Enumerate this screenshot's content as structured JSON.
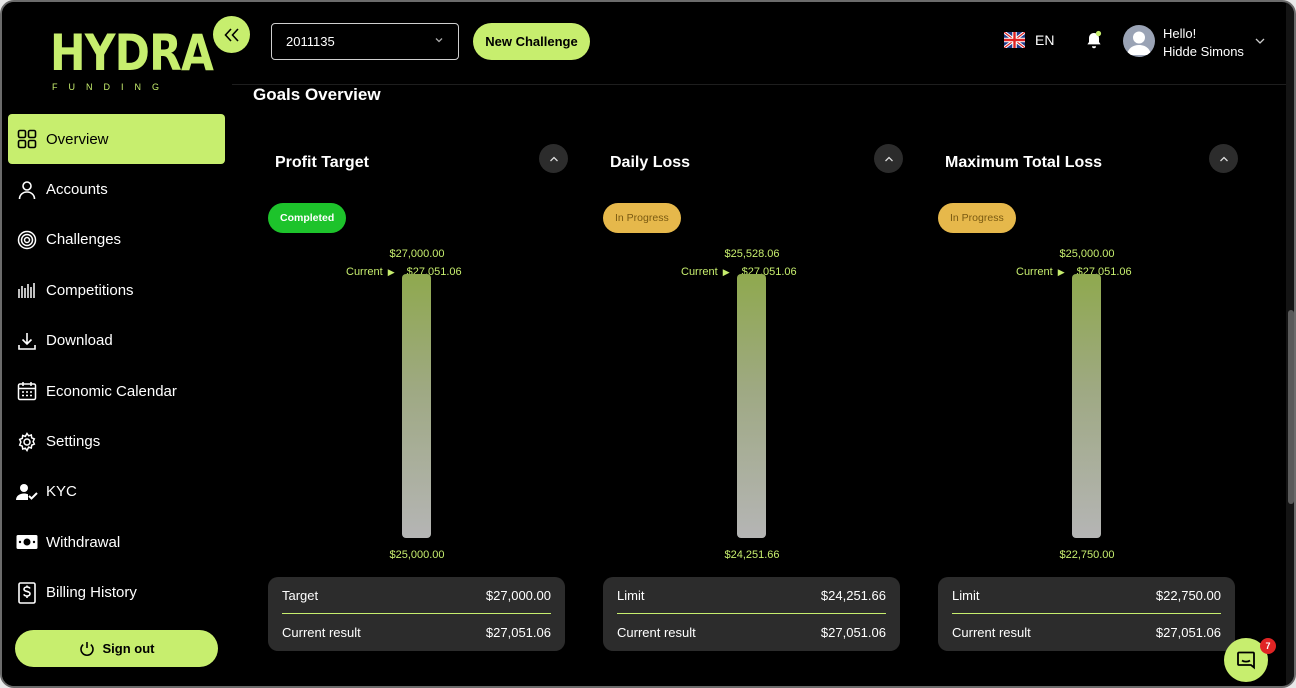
{
  "brand": {
    "name": "HYDRA",
    "sub": "FUNDING",
    "accent": "#c7ee6e"
  },
  "sidebar": {
    "items": [
      {
        "label": "Overview",
        "icon": "grid-icon",
        "active": true
      },
      {
        "label": "Accounts",
        "icon": "user-icon"
      },
      {
        "label": "Challenges",
        "icon": "target-icon"
      },
      {
        "label": "Competitions",
        "icon": "bars-icon"
      },
      {
        "label": "Download",
        "icon": "download-icon"
      },
      {
        "label": "Economic Calendar",
        "icon": "calendar-icon"
      },
      {
        "label": "Settings",
        "icon": "gear-icon"
      },
      {
        "label": "KYC",
        "icon": "user-check-icon"
      },
      {
        "label": "Withdrawal",
        "icon": "cash-icon"
      },
      {
        "label": "Billing History",
        "icon": "dollar-doc-icon"
      }
    ],
    "signout_label": "Sign out"
  },
  "header": {
    "account_select": "2011135",
    "new_challenge_label": "New Challenge",
    "language": "EN",
    "greeting": "Hello!",
    "user_name": "Hidde Simons"
  },
  "main": {
    "title": "Goals Overview",
    "goals": [
      {
        "title": "Profit Target",
        "status": "Completed",
        "top_value": "$27,000.00",
        "current_label": "Current",
        "current_value": "$27,051.06",
        "bottom_value": "$25,000.00",
        "row1_label": "Target",
        "row1_value": "$27,000.00",
        "row2_label": "Current result",
        "row2_value": "$27,051.06"
      },
      {
        "title": "Daily Loss",
        "status": "In Progress",
        "top_value": "$25,528.06",
        "current_label": "Current",
        "current_value": "$27,051.06",
        "bottom_value": "$24,251.66",
        "row1_label": "Limit",
        "row1_value": "$24,251.66",
        "row2_label": "Current result",
        "row2_value": "$27,051.06"
      },
      {
        "title": "Maximum Total Loss",
        "status": "In Progress",
        "top_value": "$25,000.00",
        "current_label": "Current",
        "current_value": "$27,051.06",
        "bottom_value": "$22,750.00",
        "row1_label": "Limit",
        "row1_value": "$22,750.00",
        "row2_label": "Current result",
        "row2_value": "$27,051.06"
      }
    ]
  },
  "chat": {
    "unread": "7"
  }
}
